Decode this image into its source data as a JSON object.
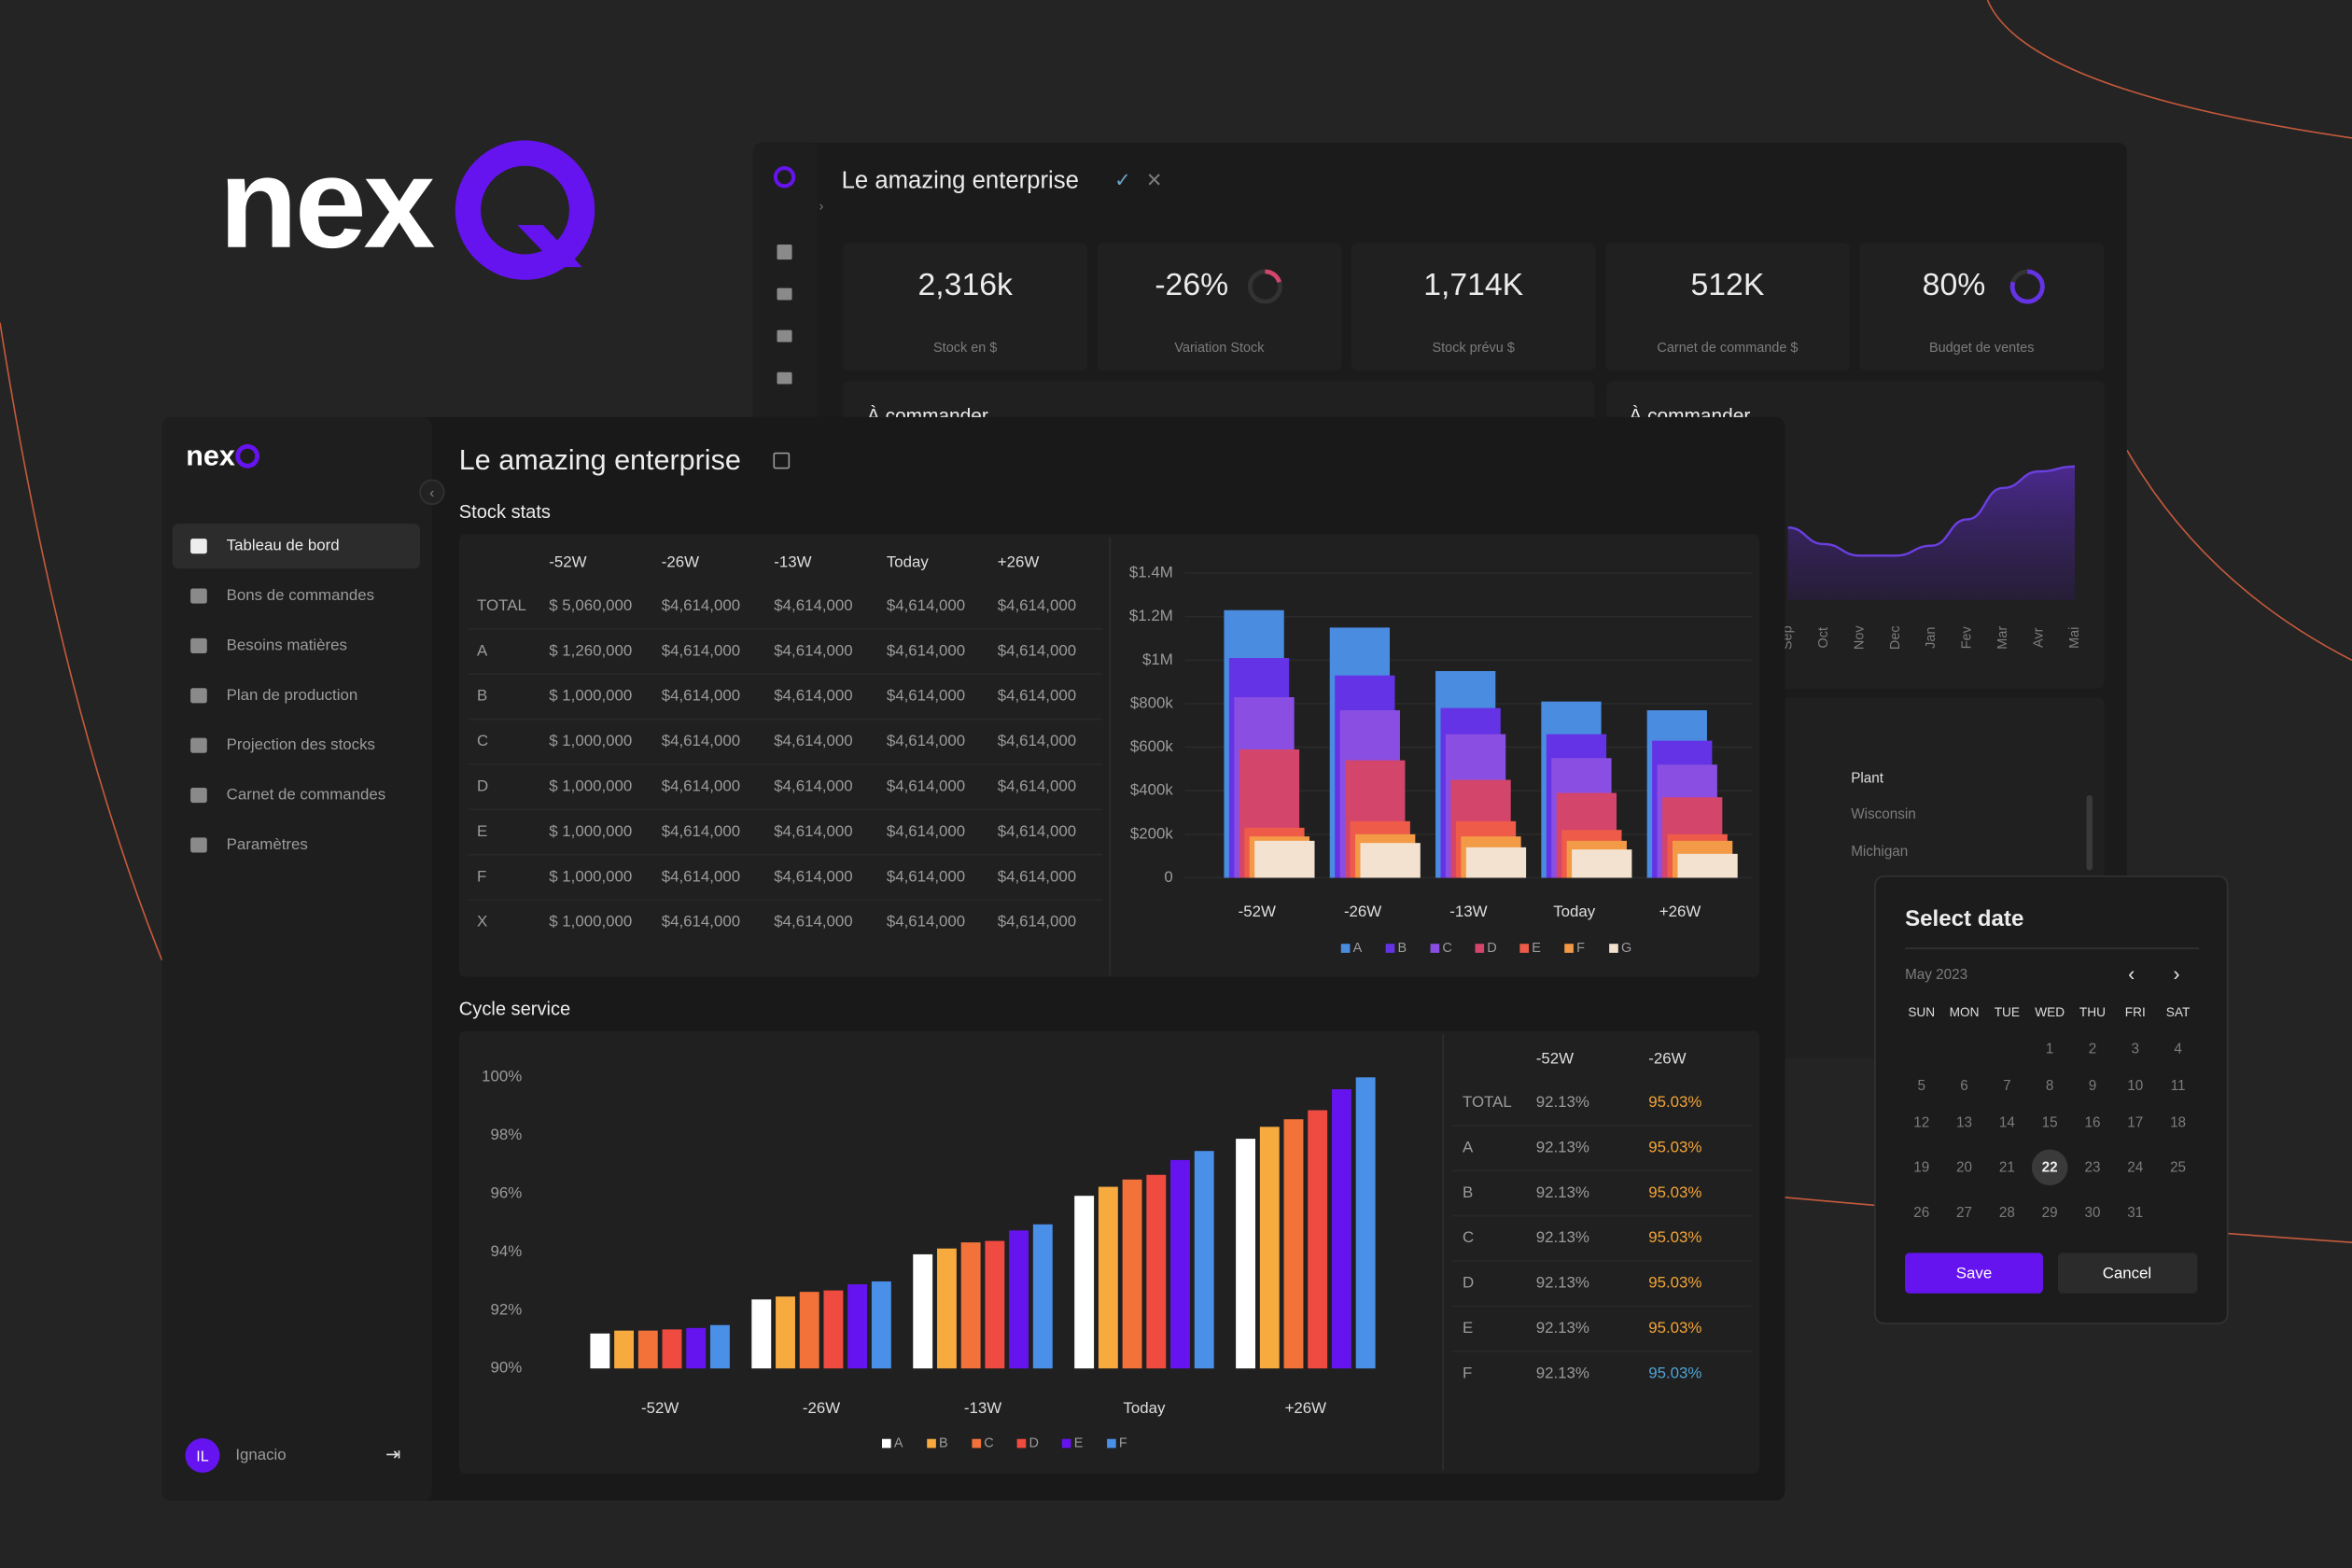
{
  "logo": {
    "text": "nex"
  },
  "back_window": {
    "title": "Le amazing enterprise",
    "kpis": [
      {
        "value": "2,316k",
        "label": "Stock en $"
      },
      {
        "value": "-26%",
        "label": "Variation Stock"
      },
      {
        "value": "1,714K",
        "label": "Stock prévu $"
      },
      {
        "value": "512K",
        "label": "Carnet de commande $"
      },
      {
        "value": "80%",
        "label": "Budget de ventes"
      }
    ],
    "panels": [
      "À commander",
      "À commander"
    ],
    "plant_table": {
      "header": "Plant",
      "rows": [
        "Wisconsin",
        "Michigan"
      ]
    }
  },
  "sidebar": {
    "nav": [
      "Tableau de bord",
      "Bons de commandes",
      "Besoins matières",
      "Plan de production",
      "Projection des stocks",
      "Carnet de commandes",
      "Paramètres"
    ],
    "user": {
      "initials": "IL",
      "name": "Ignacio"
    }
  },
  "main": {
    "title": "Le amazing enterprise",
    "stock_stats": {
      "title": "Stock stats",
      "table": {
        "header": [
          "-52W",
          "-26W",
          "-13W",
          "Today",
          "+26W"
        ],
        "rows": [
          [
            "TOTAL",
            "$ 5,060,000",
            "$4,614,000",
            "$4,614,000",
            "$4,614,000",
            "$4,614,000"
          ],
          [
            "A",
            "$ 1,260,000",
            "$4,614,000",
            "$4,614,000",
            "$4,614,000",
            "$4,614,000"
          ],
          [
            "B",
            "$ 1,000,000",
            "$4,614,000",
            "$4,614,000",
            "$4,614,000",
            "$4,614,000"
          ],
          [
            "C",
            "$ 1,000,000",
            "$4,614,000",
            "$4,614,000",
            "$4,614,000",
            "$4,614,000"
          ],
          [
            "D",
            "$ 1,000,000",
            "$4,614,000",
            "$4,614,000",
            "$4,614,000",
            "$4,614,000"
          ],
          [
            "E",
            "$ 1,000,000",
            "$4,614,000",
            "$4,614,000",
            "$4,614,000",
            "$4,614,000"
          ],
          [
            "F",
            "$ 1,000,000",
            "$4,614,000",
            "$4,614,000",
            "$4,614,000",
            "$4,614,000"
          ],
          [
            "X",
            "$ 1,000,000",
            "$4,614,000",
            "$4,614,000",
            "$4,614,000",
            "$4,614,000"
          ]
        ]
      }
    },
    "cycle_service": {
      "title": "Cycle service",
      "table": {
        "header": [
          "-52W",
          "-26W"
        ],
        "rows": [
          [
            "TOTAL",
            "92.13%",
            "95.03%"
          ],
          [
            "A",
            "92.13%",
            "95.03%"
          ],
          [
            "B",
            "92.13%",
            "95.03%"
          ],
          [
            "C",
            "92.13%",
            "95.03%"
          ],
          [
            "D",
            "92.13%",
            "95.03%"
          ],
          [
            "E",
            "92.13%",
            "95.03%"
          ],
          [
            "F",
            "92.13%",
            "95.03%"
          ]
        ]
      }
    }
  },
  "date_picker": {
    "title": "Select date",
    "month": "May 2023",
    "weekdays": [
      "SUN",
      "MON",
      "TUE",
      "WED",
      "THU",
      "FRI",
      "SAT"
    ],
    "weeks": [
      [
        null,
        null,
        null,
        1,
        2,
        3,
        4
      ],
      [
        5,
        6,
        7,
        8,
        9,
        10,
        11
      ],
      [
        12,
        13,
        14,
        15,
        16,
        17,
        18
      ],
      [
        19,
        20,
        21,
        22,
        23,
        24,
        25
      ],
      [
        26,
        27,
        28,
        29,
        30,
        31,
        null
      ]
    ],
    "selected": 22,
    "buttons": [
      "Save",
      "Cancel"
    ]
  },
  "chart_data": [
    {
      "type": "overlap_bar",
      "categories": [
        "-52W",
        "-26W",
        "-13W",
        "Today",
        "+26W"
      ],
      "series": [
        {
          "name": "A",
          "color": "#4a8ce0",
          "values": [
            1230000,
            1150000,
            950000,
            810000,
            770000
          ]
        },
        {
          "name": "B",
          "color": "#6533e6",
          "values": [
            1010000,
            930000,
            780000,
            660000,
            630000
          ]
        },
        {
          "name": "C",
          "color": "#8a4fe2",
          "values": [
            830000,
            770000,
            660000,
            550000,
            520000
          ]
        },
        {
          "name": "D",
          "color": "#d4456c",
          "values": [
            590000,
            540000,
            450000,
            390000,
            370000
          ]
        },
        {
          "name": "E",
          "color": "#ee5b48",
          "values": [
            230000,
            260000,
            260000,
            220000,
            200000
          ]
        },
        {
          "name": "F",
          "color": "#f39a47",
          "values": [
            190000,
            200000,
            190000,
            170000,
            170000
          ]
        },
        {
          "name": "G",
          "color": "#f3e2d0",
          "values": [
            170000,
            160000,
            140000,
            130000,
            110000
          ]
        }
      ],
      "ylim": [
        0,
        1400000
      ],
      "yticks": [
        0,
        {
          "value": 200000,
          "label": "$200k"
        },
        {
          "value": 400000,
          "label": "$400k"
        },
        {
          "value": 600000,
          "label": "$600k"
        },
        {
          "value": 800000,
          "label": "$800k"
        },
        {
          "value": 1000000,
          "label": "$1M"
        },
        {
          "value": 1200000,
          "label": "$1.2M"
        },
        {
          "value": 1400000,
          "label": "$1.4M"
        }
      ],
      "grid": true
    },
    {
      "type": "bar",
      "categories": [
        "-52W",
        "-26W",
        "-13W",
        "Today",
        "+26W"
      ],
      "series": [
        {
          "name": "A",
          "color": "#ffffff",
          "values": [
            91.2,
            92.37,
            93.92,
            95.93,
            97.89
          ]
        },
        {
          "name": "B",
          "color": "#f7aa3e",
          "values": [
            91.3,
            92.47,
            94.12,
            96.24,
            98.3
          ]
        },
        {
          "name": "C",
          "color": "#f2723a",
          "values": [
            91.3,
            92.63,
            94.33,
            96.49,
            98.56
          ]
        },
        {
          "name": "D",
          "color": "#ef4b40",
          "values": [
            91.34,
            92.68,
            94.38,
            96.65,
            98.87
          ]
        },
        {
          "name": "E",
          "color": "#6614ef",
          "values": [
            91.39,
            92.89,
            94.74,
            97.16,
            99.59
          ]
        },
        {
          "name": "F",
          "color": "#4a8fe8",
          "values": [
            91.49,
            92.99,
            94.95,
            97.47,
            100
          ]
        }
      ],
      "ylim": [
        90,
        100
      ],
      "yticks": [
        {
          "value": 90,
          "label": "90%"
        },
        {
          "value": 92,
          "label": "92%"
        },
        {
          "value": 94,
          "label": "94%"
        },
        {
          "value": 96,
          "label": "96%"
        },
        {
          "value": 98,
          "label": "98%"
        },
        {
          "value": 100,
          "label": "100%"
        }
      ],
      "grid": false
    },
    {
      "type": "area",
      "categories": [
        "Sep",
        "Oct",
        "Nov",
        "Dec",
        "Jan",
        "Fev",
        "Mar",
        "Avr",
        "Mai"
      ],
      "values": [
        44,
        34,
        27,
        27,
        33,
        49,
        68,
        78,
        81
      ],
      "ylim": [
        0,
        100
      ],
      "color": "#6b3fe0"
    }
  ]
}
